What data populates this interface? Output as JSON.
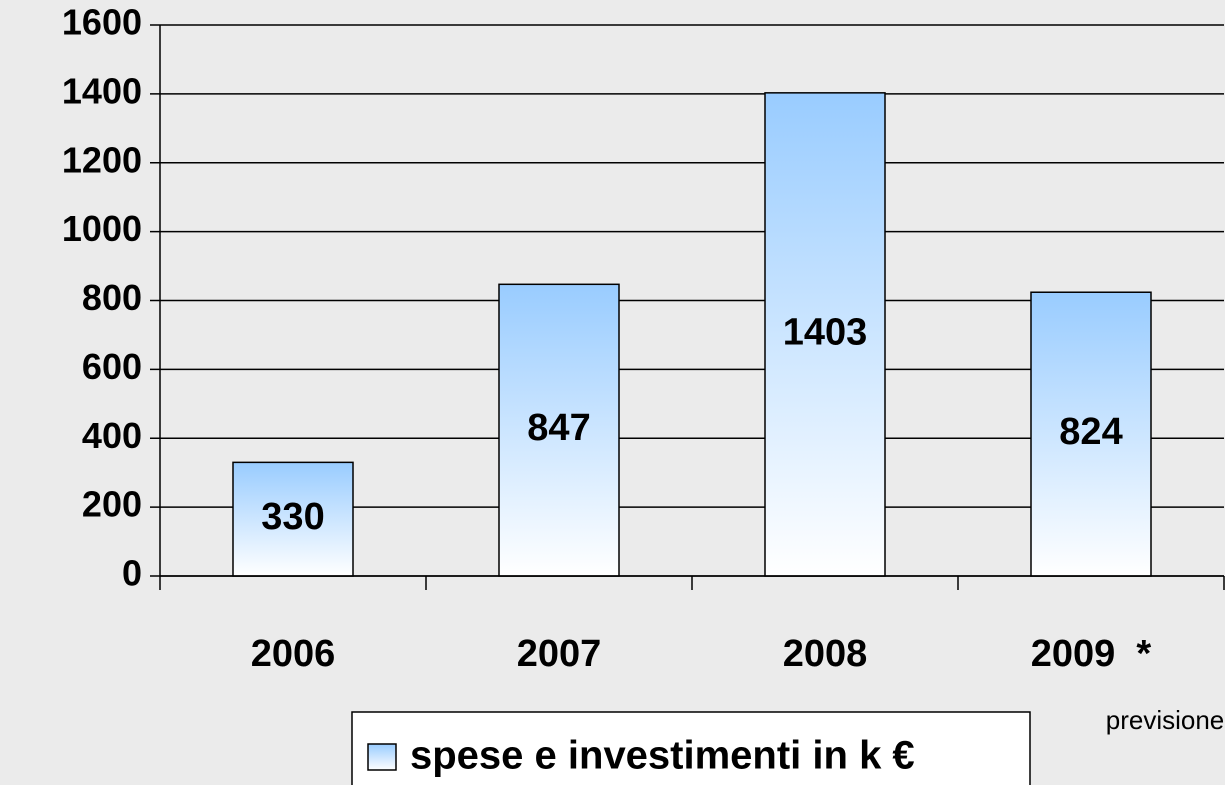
{
  "chart_data": {
    "type": "bar",
    "categories": [
      "2006",
      "2007",
      "2008",
      "2009  *"
    ],
    "series": [
      {
        "name": "spese e investimenti in k €",
        "color": "#99ccff",
        "values": [
          330,
          847,
          1403,
          824
        ]
      }
    ],
    "ylim": [
      0,
      1600
    ],
    "yticks": [
      0,
      200,
      400,
      600,
      800,
      1000,
      1200,
      1400,
      1600
    ],
    "grid": true,
    "annotation": "previsione",
    "legend": "bottom"
  }
}
